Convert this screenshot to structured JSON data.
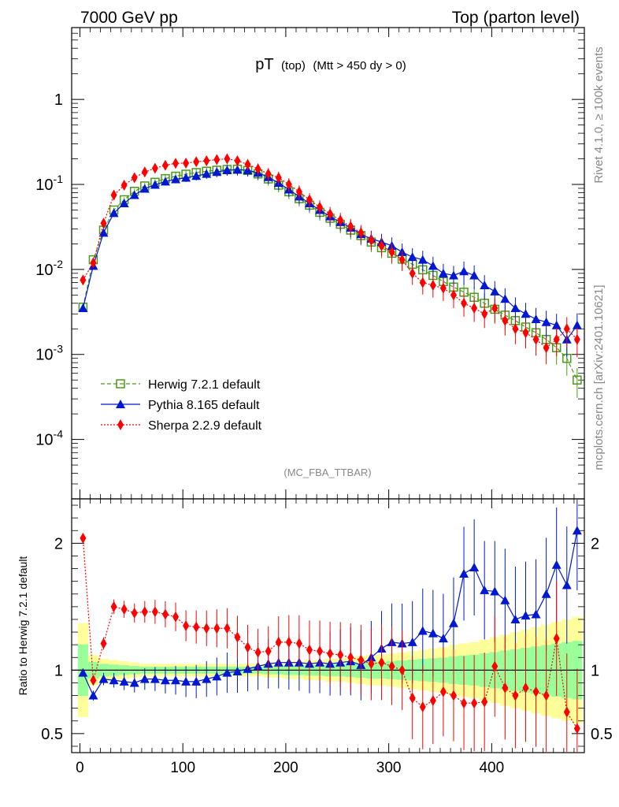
{
  "header": {
    "left": "7000 GeV pp",
    "right": "Top (parton level)"
  },
  "title": {
    "main": "pT",
    "sub1": "(top)",
    "sub2": "(Mtt > 450 dy > 0)"
  },
  "side": {
    "rivet": "Rivet 4.1.0, ≥ 100k events",
    "mcplots": "mcplots.cern.ch [arXiv:2401.10621]"
  },
  "analysis_tag": "(MC_FBA_TTBAR)",
  "ratio_ylabel": "Ratio to Herwig 7.2.1 default",
  "colors": {
    "herwig": "#4a9a1a",
    "pythia": "#0018d0",
    "sherpa": "#ff0000",
    "band_yellow": "#ffff99",
    "band_green": "#99ff99"
  },
  "chart_data": [
    {
      "type": "line",
      "title": "pT (top) (Mtt > 450 dy > 0)",
      "yscale": "log",
      "xlim": [
        -8,
        490
      ],
      "ylim": [
        2e-05,
        7
      ],
      "ytick_labels": [
        "10^-4",
        "10^-3",
        "10^-2",
        "10^-1",
        "1"
      ],
      "xtick_labels": [
        "0",
        "100",
        "200",
        "300",
        "400"
      ],
      "legend": [
        "Herwig 7.2.1 default",
        "Pythia 8.165 default",
        "Sherpa 2.2.9 default"
      ],
      "x": [
        3,
        13,
        23,
        33,
        43,
        53,
        63,
        73,
        83,
        93,
        103,
        113,
        123,
        133,
        143,
        153,
        163,
        173,
        183,
        193,
        203,
        213,
        223,
        233,
        243,
        253,
        263,
        273,
        283,
        293,
        303,
        313,
        323,
        333,
        343,
        353,
        363,
        373,
        383,
        393,
        403,
        413,
        423,
        433,
        443,
        453,
        463,
        473,
        483
      ],
      "series": [
        {
          "name": "Herwig 7.2.1 default",
          "values": [
            0.0036,
            0.013,
            0.029,
            0.05,
            0.066,
            0.083,
            0.096,
            0.106,
            0.117,
            0.125,
            0.132,
            0.138,
            0.143,
            0.147,
            0.15,
            0.151,
            0.146,
            0.133,
            0.116,
            0.098,
            0.082,
            0.068,
            0.057,
            0.047,
            0.04,
            0.034,
            0.029,
            0.025,
            0.021,
            0.018,
            0.0155,
            0.0132,
            0.0115,
            0.0099,
            0.0085,
            0.0072,
            0.0062,
            0.0054,
            0.0047,
            0.004,
            0.0034,
            0.0029,
            0.0025,
            0.0021,
            0.0018,
            0.0015,
            0.0012,
            0.0009,
            0.0005
          ]
        },
        {
          "name": "Pythia 8.165 default",
          "values": [
            0.0035,
            0.011,
            0.027,
            0.046,
            0.06,
            0.075,
            0.089,
            0.099,
            0.108,
            0.115,
            0.12,
            0.126,
            0.133,
            0.14,
            0.147,
            0.149,
            0.147,
            0.137,
            0.122,
            0.104,
            0.087,
            0.072,
            0.06,
            0.05,
            0.042,
            0.036,
            0.031,
            0.026,
            0.023,
            0.021,
            0.019,
            0.016,
            0.014,
            0.013,
            0.011,
            0.009,
            0.0085,
            0.0095,
            0.0085,
            0.0065,
            0.0055,
            0.0045,
            0.0035,
            0.003,
            0.0026,
            0.0024,
            0.0022,
            0.0015,
            0.0022
          ]
        },
        {
          "name": "Sherpa 2.2.9 default",
          "values": [
            0.0075,
            0.012,
            0.035,
            0.075,
            0.098,
            0.12,
            0.14,
            0.155,
            0.168,
            0.177,
            0.178,
            0.185,
            0.19,
            0.196,
            0.2,
            0.19,
            0.172,
            0.152,
            0.133,
            0.12,
            0.1,
            0.082,
            0.066,
            0.054,
            0.045,
            0.038,
            0.032,
            0.027,
            0.022,
            0.019,
            0.016,
            0.013,
            0.009,
            0.007,
            0.0065,
            0.006,
            0.005,
            0.004,
            0.0035,
            0.003,
            0.0035,
            0.0025,
            0.002,
            0.0018,
            0.0015,
            0.0012,
            0.0015,
            0.002,
            0.0015
          ]
        }
      ]
    },
    {
      "type": "line",
      "title": "Ratio to Herwig 7.2.1 default",
      "ylabel": "Ratio to Herwig 7.2.1 default",
      "ylim": [
        0.35,
        2.35
      ],
      "xlim": [
        -8,
        490
      ],
      "ytick_labels": [
        "0.5",
        "1",
        "2"
      ],
      "xtick_labels": [
        "0",
        "100",
        "200",
        "300",
        "400"
      ],
      "x": [
        3,
        13,
        23,
        33,
        43,
        53,
        63,
        73,
        83,
        93,
        103,
        113,
        123,
        133,
        143,
        153,
        163,
        173,
        183,
        193,
        203,
        213,
        223,
        233,
        243,
        253,
        263,
        273,
        283,
        293,
        303,
        313,
        323,
        333,
        343,
        353,
        363,
        373,
        383,
        393,
        403,
        413,
        423,
        433,
        443,
        453,
        463,
        473,
        483
      ],
      "band_halfwidth": [
        0.37,
        0.12,
        0.09,
        0.08,
        0.07,
        0.06,
        0.05,
        0.05,
        0.05,
        0.05,
        0.05,
        0.05,
        0.05,
        0.05,
        0.05,
        0.05,
        0.05,
        0.05,
        0.06,
        0.06,
        0.07,
        0.07,
        0.08,
        0.08,
        0.09,
        0.09,
        0.1,
        0.11,
        0.12,
        0.12,
        0.13,
        0.14,
        0.15,
        0.16,
        0.17,
        0.18,
        0.2,
        0.21,
        0.22,
        0.24,
        0.26,
        0.28,
        0.3,
        0.32,
        0.34,
        0.36,
        0.38,
        0.4,
        0.42
      ],
      "series": [
        {
          "name": "Herwig 7.2.1 default",
          "values": [
            1,
            1,
            1,
            1,
            1,
            1,
            1,
            1,
            1,
            1,
            1,
            1,
            1,
            1,
            1,
            1,
            1,
            1,
            1,
            1,
            1,
            1,
            1,
            1,
            1,
            1,
            1,
            1,
            1,
            1,
            1,
            1,
            1,
            1,
            1,
            1,
            1,
            1,
            1,
            1,
            1,
            1,
            1,
            1,
            1,
            1,
            1,
            1,
            1
          ]
        },
        {
          "name": "Pythia 8.165 default",
          "values": [
            0.98,
            0.8,
            0.93,
            0.92,
            0.91,
            0.9,
            0.93,
            0.93,
            0.92,
            0.92,
            0.91,
            0.91,
            0.93,
            0.95,
            0.98,
            0.99,
            1.01,
            1.03,
            1.05,
            1.06,
            1.06,
            1.06,
            1.05,
            1.06,
            1.05,
            1.06,
            1.07,
            1.04,
            1.1,
            1.17,
            1.22,
            1.21,
            1.22,
            1.31,
            1.29,
            1.25,
            1.37,
            1.76,
            1.81,
            1.63,
            1.62,
            1.55,
            1.4,
            1.43,
            1.44,
            1.6,
            1.83,
            1.67,
            2.1
          ]
        },
        {
          "name": "Sherpa 2.2.9 default",
          "values": [
            2.04,
            0.92,
            1.21,
            1.5,
            1.48,
            1.45,
            1.46,
            1.46,
            1.44,
            1.42,
            1.35,
            1.34,
            1.33,
            1.33,
            1.33,
            1.26,
            1.18,
            1.14,
            1.15,
            1.22,
            1.22,
            1.21,
            1.16,
            1.15,
            1.13,
            1.12,
            1.1,
            1.08,
            1.05,
            1.06,
            1.03,
            1.0,
            0.78,
            0.71,
            0.76,
            0.83,
            0.8,
            0.74,
            0.74,
            0.75,
            1.03,
            0.86,
            0.8,
            0.86,
            0.83,
            0.8,
            1.25,
            0.67,
            0.54
          ]
        }
      ]
    }
  ]
}
